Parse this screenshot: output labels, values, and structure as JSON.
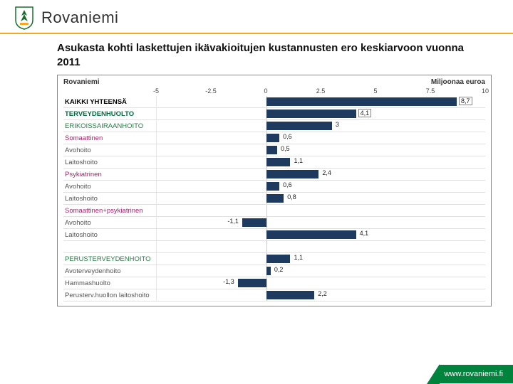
{
  "brand": {
    "name": "Rovaniemi"
  },
  "title": "Asukasta kohti laskettujen ikävakioitujen kustannusten ero keskiarvoon vuonna 2011",
  "chart": {
    "header_left": "Rovaniemi",
    "header_right": "Miljoonaa euroa",
    "axis": {
      "min": -5,
      "max": 10,
      "ticks": [
        -5,
        -2.5,
        0,
        2.5,
        5,
        7.5,
        10
      ]
    },
    "bar_color": "#1f3a5f",
    "rows": [
      {
        "label": "KAIKKI YHTEENSÄ",
        "value": 8.7,
        "bold": true,
        "boxed": true,
        "color": "#000"
      },
      {
        "label": "TERVEYDENHUOLTO",
        "value": 4.1,
        "bold": true,
        "boxed": true,
        "color": "#006b3f"
      },
      {
        "label": "ERIKOISSAIRAANHOITO",
        "value": 3.0,
        "color": "#2a7a47"
      },
      {
        "label": "Somaattinen",
        "value": 0.6,
        "color": "#a0286a"
      },
      {
        "label": "Avohoito",
        "value": 0.5,
        "color": "#555"
      },
      {
        "label": "Laitoshoito",
        "value": 1.1,
        "color": "#555"
      },
      {
        "label": "Psykiatrinen",
        "value": 2.4,
        "color": "#a0286a"
      },
      {
        "label": "Avohoito",
        "value": 0.6,
        "color": "#555"
      },
      {
        "label": "Laitoshoito",
        "value": 0.8,
        "color": "#555"
      },
      {
        "label": "Somaattinen+psykiatrinen",
        "value": null,
        "color": "#a0286a"
      },
      {
        "label": "Avohoito",
        "value": -1.1,
        "color": "#555"
      },
      {
        "label": "Laitoshoito",
        "value": 4.1,
        "color": "#555"
      },
      {
        "label": "",
        "value": null
      },
      {
        "label": "PERUSTERVEYDENHOITO",
        "value": 1.1,
        "color": "#2a7a47"
      },
      {
        "label": "Avoterveydenhoito",
        "value": 0.2,
        "color": "#555"
      },
      {
        "label": "Hammashuolto",
        "value": -1.3,
        "color": "#555"
      },
      {
        "label": "Perusterv.huollon laitoshoito",
        "value": 2.2,
        "color": "#555"
      }
    ]
  },
  "footer": {
    "url": "www.rovaniemi.fi"
  },
  "colors": {
    "accent": "#f5a623",
    "green": "#00843d"
  }
}
